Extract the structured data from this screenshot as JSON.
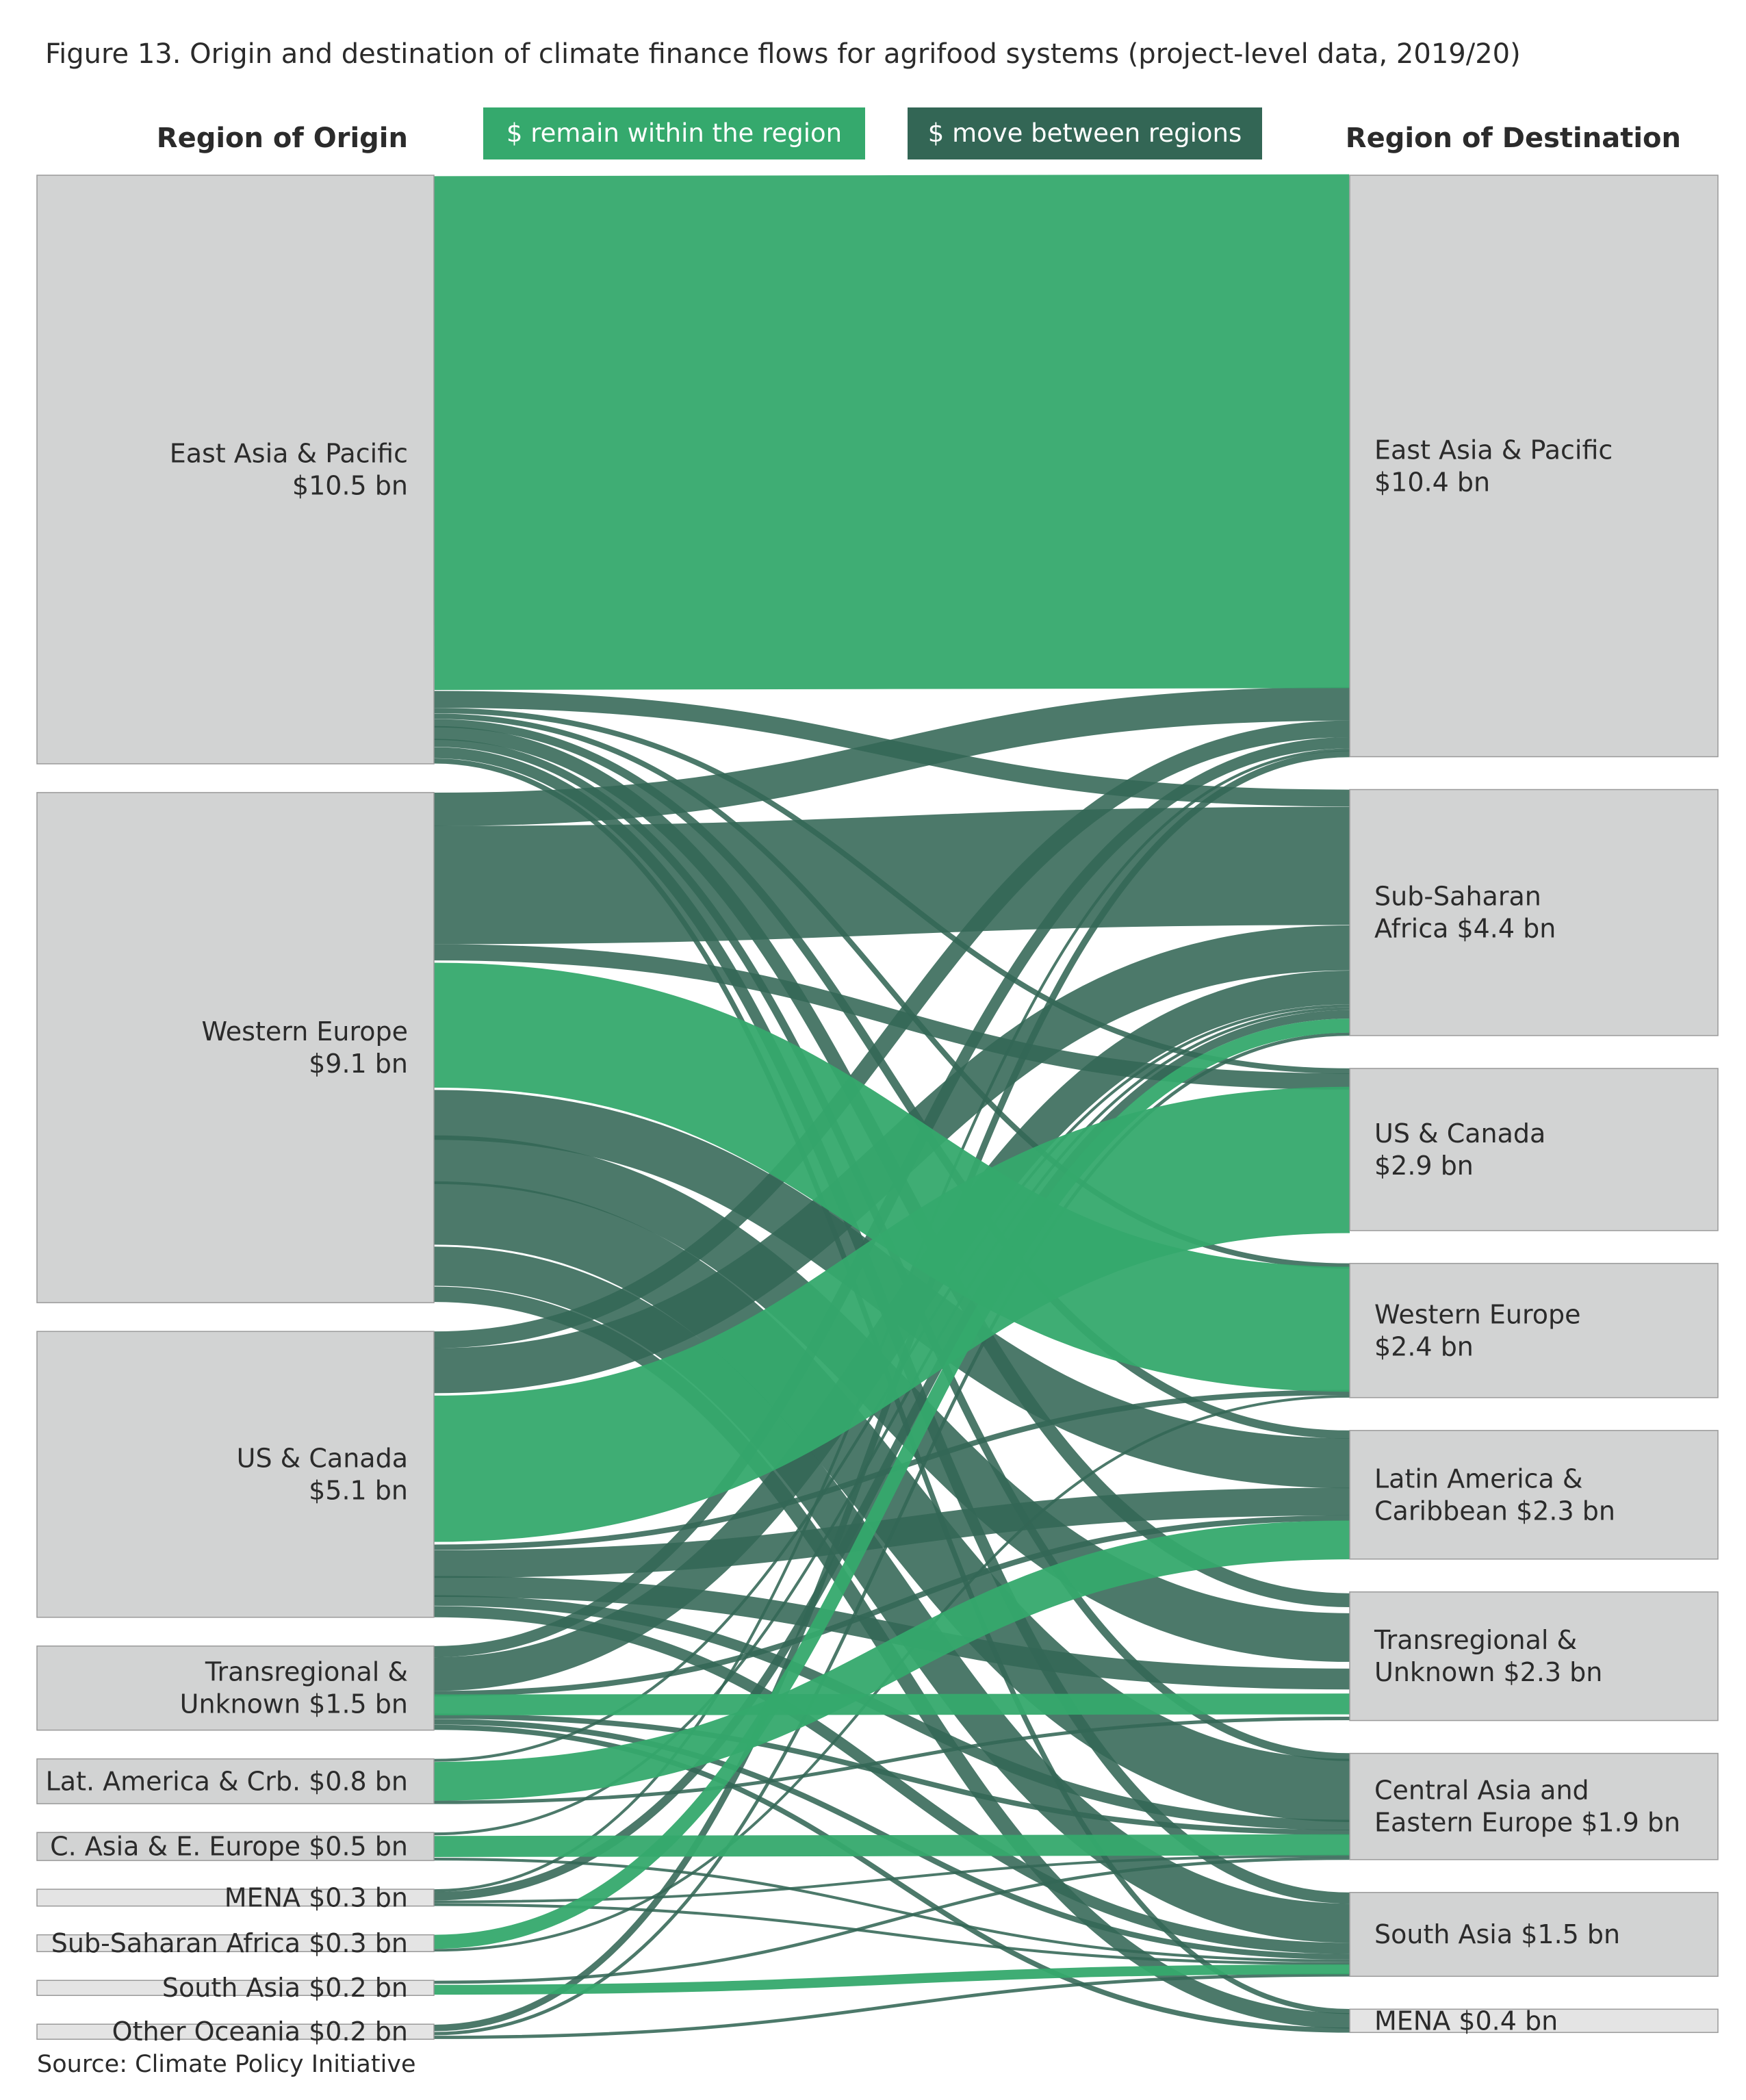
{
  "chart_data": {
    "type": "sankey",
    "title": "Figure 13. Origin and destination of climate finance flows for agrifood systems (project-level data, 2019/20)",
    "origin_header": "Region of Origin",
    "destination_header": "Region of Destination",
    "legend": {
      "within": "$ remain within the region",
      "between": "$ move between regions"
    },
    "colors": {
      "within": "#35a96d",
      "between": "#336655",
      "node": "#d2d3d3",
      "node_light": "#e4e4e4"
    },
    "origins": [
      {
        "id": "eap",
        "lines": [
          "East Asia & Pacific",
          "$10.5 bn"
        ],
        "value": 10.5
      },
      {
        "id": "we",
        "lines": [
          "Western Europe",
          "$9.1 bn"
        ],
        "value": 9.1
      },
      {
        "id": "usc",
        "lines": [
          "US & Canada",
          "$5.1 bn"
        ],
        "value": 5.1
      },
      {
        "id": "tr",
        "lines": [
          "Transregional &",
          "Unknown $1.5 bn"
        ],
        "value": 1.5
      },
      {
        "id": "lac",
        "lines": [
          "Lat. America & Crb. $0.8 bn"
        ],
        "value": 0.8
      },
      {
        "id": "caee",
        "lines": [
          "C. Asia & E. Europe $0.5 bn"
        ],
        "value": 0.5
      },
      {
        "id": "mena",
        "lines": [
          "MENA $0.3 bn"
        ],
        "value": 0.3
      },
      {
        "id": "ssa",
        "lines": [
          "Sub-Saharan Africa $0.3 bn"
        ],
        "value": 0.3
      },
      {
        "id": "sa",
        "lines": [
          "South Asia $0.2 bn"
        ],
        "value": 0.2
      },
      {
        "id": "oo",
        "lines": [
          "Other Oceania $0.2 bn"
        ],
        "value": 0.2
      }
    ],
    "destinations": [
      {
        "id": "eap",
        "lines": [
          "East Asia & Pacific",
          "$10.4 bn"
        ],
        "value": 10.4
      },
      {
        "id": "ssa",
        "lines": [
          "Sub-Saharan",
          "Africa $4.4 bn"
        ],
        "value": 4.4
      },
      {
        "id": "usc",
        "lines": [
          "US & Canada",
          "$2.9 bn"
        ],
        "value": 2.9
      },
      {
        "id": "we",
        "lines": [
          "Western Europe",
          "$2.4 bn"
        ],
        "value": 2.4
      },
      {
        "id": "lac",
        "lines": [
          "Latin America &",
          "Caribbean $2.3 bn"
        ],
        "value": 2.3
      },
      {
        "id": "tr",
        "lines": [
          "Transregional &",
          "Unknown $2.3 bn"
        ],
        "value": 2.3
      },
      {
        "id": "caee",
        "lines": [
          "Central Asia and",
          "Eastern Europe $1.9 bn"
        ],
        "value": 1.9
      },
      {
        "id": "sa",
        "lines": [
          "South Asia $1.5 bn"
        ],
        "value": 1.5
      },
      {
        "id": "mena",
        "lines": [
          "MENA $0.4 bn"
        ],
        "value": 0.4
      }
    ],
    "flows": [
      {
        "from": "eap",
        "to": "eap",
        "value": 9.2
      },
      {
        "from": "eap",
        "to": "ssa",
        "value": 0.3
      },
      {
        "from": "eap",
        "to": "sa",
        "value": 0.2
      },
      {
        "from": "eap",
        "to": "lac",
        "value": 0.15
      },
      {
        "from": "eap",
        "to": "caee",
        "value": 0.15
      },
      {
        "from": "eap",
        "to": "tr",
        "value": 0.2
      },
      {
        "from": "eap",
        "to": "mena",
        "value": 0.1
      },
      {
        "from": "eap",
        "to": "usc",
        "value": 0.1
      },
      {
        "from": "eap",
        "to": "we",
        "value": 0.1
      },
      {
        "from": "we",
        "to": "eap",
        "value": 0.6
      },
      {
        "from": "we",
        "to": "ssa",
        "value": 2.1
      },
      {
        "from": "we",
        "to": "we",
        "value": 2.3
      },
      {
        "from": "we",
        "to": "caee",
        "value": 1.2
      },
      {
        "from": "we",
        "to": "sa",
        "value": 0.7
      },
      {
        "from": "we",
        "to": "lac",
        "value": 0.9
      },
      {
        "from": "we",
        "to": "tr",
        "value": 0.7
      },
      {
        "from": "we",
        "to": "mena",
        "value": 0.3
      },
      {
        "from": "we",
        "to": "usc",
        "value": 0.3
      },
      {
        "from": "usc",
        "to": "eap",
        "value": 0.3
      },
      {
        "from": "usc",
        "to": "ssa",
        "value": 0.8
      },
      {
        "from": "usc",
        "to": "usc",
        "value": 2.7
      },
      {
        "from": "usc",
        "to": "lac",
        "value": 0.5
      },
      {
        "from": "usc",
        "to": "tr",
        "value": 0.3
      },
      {
        "from": "usc",
        "to": "sa",
        "value": 0.2
      },
      {
        "from": "usc",
        "to": "caee",
        "value": 0.2
      },
      {
        "from": "usc",
        "to": "we",
        "value": 0.1
      },
      {
        "from": "tr",
        "to": "tr",
        "value": 0.3
      },
      {
        "from": "tr",
        "to": "ssa",
        "value": 0.6
      },
      {
        "from": "tr",
        "to": "eap",
        "value": 0.2
      },
      {
        "from": "tr",
        "to": "lac",
        "value": 0.1
      },
      {
        "from": "tr",
        "to": "sa",
        "value": 0.1
      },
      {
        "from": "tr",
        "to": "caee",
        "value": 0.1
      },
      {
        "from": "tr",
        "to": "mena",
        "value": 0.1
      },
      {
        "from": "lac",
        "to": "lac",
        "value": 0.7
      },
      {
        "from": "lac",
        "to": "ssa",
        "value": 0.05
      },
      {
        "from": "lac",
        "to": "tr",
        "value": 0.05
      },
      {
        "from": "caee",
        "to": "caee",
        "value": 0.4
      },
      {
        "from": "caee",
        "to": "sa",
        "value": 0.05
      },
      {
        "from": "caee",
        "to": "ssa",
        "value": 0.05
      },
      {
        "from": "mena",
        "to": "ssa",
        "value": 0.15
      },
      {
        "from": "mena",
        "to": "caee",
        "value": 0.05
      },
      {
        "from": "mena",
        "to": "eap",
        "value": 0.05
      },
      {
        "from": "mena",
        "to": "sa",
        "value": 0.05
      },
      {
        "from": "ssa",
        "to": "ssa",
        "value": 0.25
      },
      {
        "from": "ssa",
        "to": "we",
        "value": 0.05
      },
      {
        "from": "sa",
        "to": "sa",
        "value": 0.15
      },
      {
        "from": "sa",
        "to": "caee",
        "value": 0.05
      },
      {
        "from": "oo",
        "to": "eap",
        "value": 0.1
      },
      {
        "from": "oo",
        "to": "sa",
        "value": 0.05
      },
      {
        "from": "oo",
        "to": "ssa",
        "value": 0.05
      }
    ]
  },
  "source_note": "Source: Climate Policy Initiative"
}
